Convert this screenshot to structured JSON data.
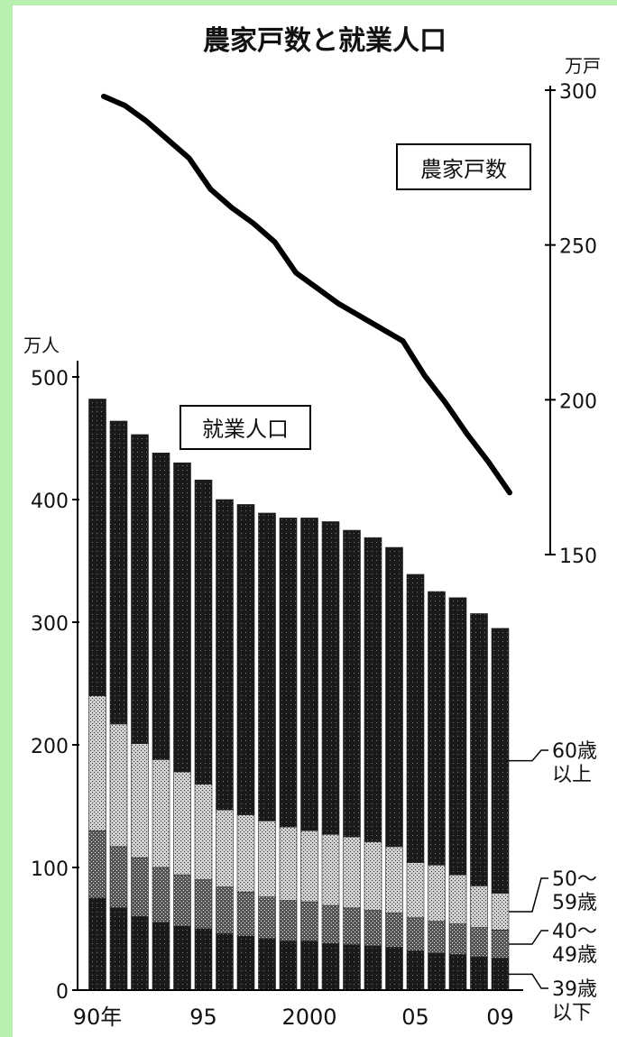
{
  "chart_data": {
    "type": "bar",
    "title": "農家戸数と就業人口",
    "x_labels": [
      "90年",
      "95",
      "2000",
      "05",
      "09"
    ],
    "categories": [
      "1990",
      "1991",
      "1992",
      "1993",
      "1994",
      "1995",
      "1996",
      "1997",
      "1998",
      "1999",
      "2000",
      "2001",
      "2002",
      "2003",
      "2004",
      "2005",
      "2006",
      "2007",
      "2008",
      "2009"
    ],
    "left_axis": {
      "unit": "万人",
      "ticks": [
        "0",
        "100",
        "200",
        "300",
        "400",
        "500"
      ],
      "range": [
        0,
        500
      ]
    },
    "right_axis": {
      "unit": "万戸",
      "ticks": [
        "150",
        "200",
        "250",
        "300"
      ],
      "range": [
        150,
        300
      ]
    },
    "bars_label": "就業人口",
    "line_label": "農家戸数",
    "stack_labels": [
      {
        "line1": "39歳",
        "line2": "以下"
      },
      {
        "line1": "40～",
        "line2": "49歳"
      },
      {
        "line1": "50～",
        "line2": "59歳"
      },
      {
        "line1": "60歳",
        "line2": "以上"
      }
    ],
    "series": [
      {
        "name": "39歳以下",
        "values": [
          75,
          67,
          60,
          55,
          52,
          50,
          46,
          44,
          42,
          40,
          40,
          38,
          37,
          36,
          35,
          32,
          30,
          29,
          27,
          26
        ]
      },
      {
        "name": "40～49歳",
        "values": [
          55,
          50,
          48,
          45,
          42,
          40,
          38,
          36,
          34,
          33,
          32,
          31,
          30,
          29,
          28,
          27,
          26,
          25,
          24,
          23
        ]
      },
      {
        "name": "50～59歳",
        "values": [
          110,
          100,
          93,
          88,
          84,
          78,
          63,
          63,
          62,
          60,
          58,
          58,
          58,
          56,
          54,
          45,
          46,
          40,
          34,
          30
        ]
      },
      {
        "name": "60歳以上",
        "values": [
          242,
          247,
          252,
          250,
          252,
          248,
          253,
          253,
          251,
          252,
          255,
          255,
          250,
          248,
          244,
          235,
          223,
          226,
          222,
          216
        ]
      }
    ],
    "line": {
      "name": "農家戸数",
      "values": [
        298,
        295,
        290,
        284,
        278,
        268,
        262,
        257,
        251,
        241,
        236,
        231,
        227,
        223,
        219,
        208,
        199,
        189,
        180,
        170
      ]
    },
    "colors": {
      "background": "#b8f0b0",
      "bar_dark": "#151515",
      "bar_light": "#9a9a9a",
      "line": "#000000"
    }
  }
}
